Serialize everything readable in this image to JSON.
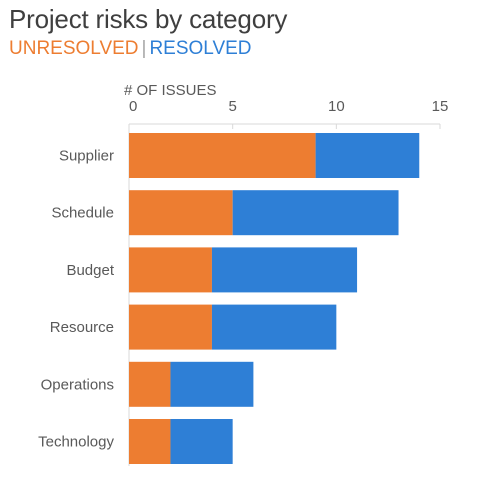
{
  "title": "Project risks by category",
  "legend": {
    "unresolved_label": "UNRESOLVED",
    "separator": "|",
    "resolved_label": "RESOLVED"
  },
  "colors": {
    "unresolved": "#ed7d31",
    "resolved": "#2e7fd6",
    "axis": "#d9d9d9",
    "text": "#595959"
  },
  "chart_data": {
    "type": "bar",
    "orientation": "horizontal",
    "stacked": true,
    "xlabel": "# OF ISSUES",
    "xlim": [
      0,
      15
    ],
    "xticks": [
      0,
      5,
      10,
      15
    ],
    "axis_position": "top",
    "grid": false,
    "legend_placement": "top-left, in subtitle",
    "categories": [
      "Supplier",
      "Schedule",
      "Budget",
      "Resource",
      "Operations",
      "Technology"
    ],
    "series": [
      {
        "name": "UNRESOLVED",
        "values": [
          9,
          5,
          4,
          4,
          2,
          2
        ]
      },
      {
        "name": "RESOLVED",
        "values": [
          5,
          8,
          7,
          6,
          4,
          3
        ]
      }
    ]
  }
}
